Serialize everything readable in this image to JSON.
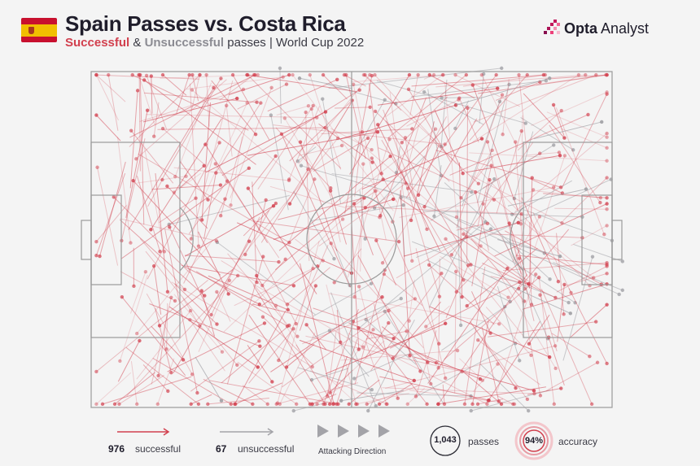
{
  "header": {
    "title": "Spain Passes vs. Costa Rica",
    "subtitle_successful": "Successful",
    "subtitle_amp": " & ",
    "subtitle_unsuccessful": "Unsuccessful",
    "subtitle_rest": " passes | World Cup 2022",
    "logo_bold": "Opta",
    "logo_light": " Analyst"
  },
  "legend": {
    "successful_count": "976",
    "successful_label": "successful",
    "unsuccessful_count": "67",
    "unsuccessful_label": "unsuccessful",
    "direction_label": "Attacking Direction",
    "passes_total": "1,043",
    "passes_label": "passes",
    "accuracy_value": "94%",
    "accuracy_label": "accuracy"
  },
  "colors": {
    "successful": "#d2404e",
    "unsuccessful": "#a3a3a8",
    "pitch_lines": "#9a9a9a",
    "background": "#f4f4f4",
    "flag_red": "#c8102e",
    "flag_yellow": "#f1bf00"
  },
  "chart_data": {
    "type": "pass-map",
    "team": "Spain",
    "opponent": "Costa Rica",
    "competition": "World Cup 2022",
    "attacking_direction": "left-to-right",
    "totals": {
      "passes": 1043,
      "successful": 976,
      "unsuccessful": 67,
      "accuracy_pct": 94
    },
    "pitch": {
      "length": 100,
      "width": 100
    },
    "sample_passes_successful": [
      [
        10,
        15,
        28,
        8
      ],
      [
        22,
        30,
        45,
        12
      ],
      [
        35,
        50,
        58,
        38
      ],
      [
        48,
        20,
        70,
        10
      ],
      [
        15,
        70,
        32,
        88
      ],
      [
        40,
        80,
        62,
        92
      ],
      [
        60,
        55,
        82,
        45
      ],
      [
        52,
        35,
        75,
        20
      ],
      [
        28,
        45,
        50,
        60
      ],
      [
        65,
        70,
        88,
        85
      ],
      [
        72,
        30,
        90,
        25
      ],
      [
        45,
        90,
        68,
        75
      ],
      [
        18,
        55,
        35,
        40
      ],
      [
        55,
        10,
        78,
        5
      ],
      [
        30,
        25,
        55,
        18
      ],
      [
        62,
        85,
        85,
        95
      ]
    ],
    "sample_passes_unsuccessful": [
      [
        70,
        10,
        88,
        2
      ],
      [
        80,
        40,
        95,
        35
      ],
      [
        75,
        60,
        92,
        72
      ],
      [
        85,
        20,
        98,
        15
      ],
      [
        20,
        85,
        25,
        98
      ],
      [
        60,
        95,
        48,
        98
      ],
      [
        78,
        50,
        90,
        55
      ],
      [
        50,
        5,
        40,
        2
      ]
    ]
  }
}
